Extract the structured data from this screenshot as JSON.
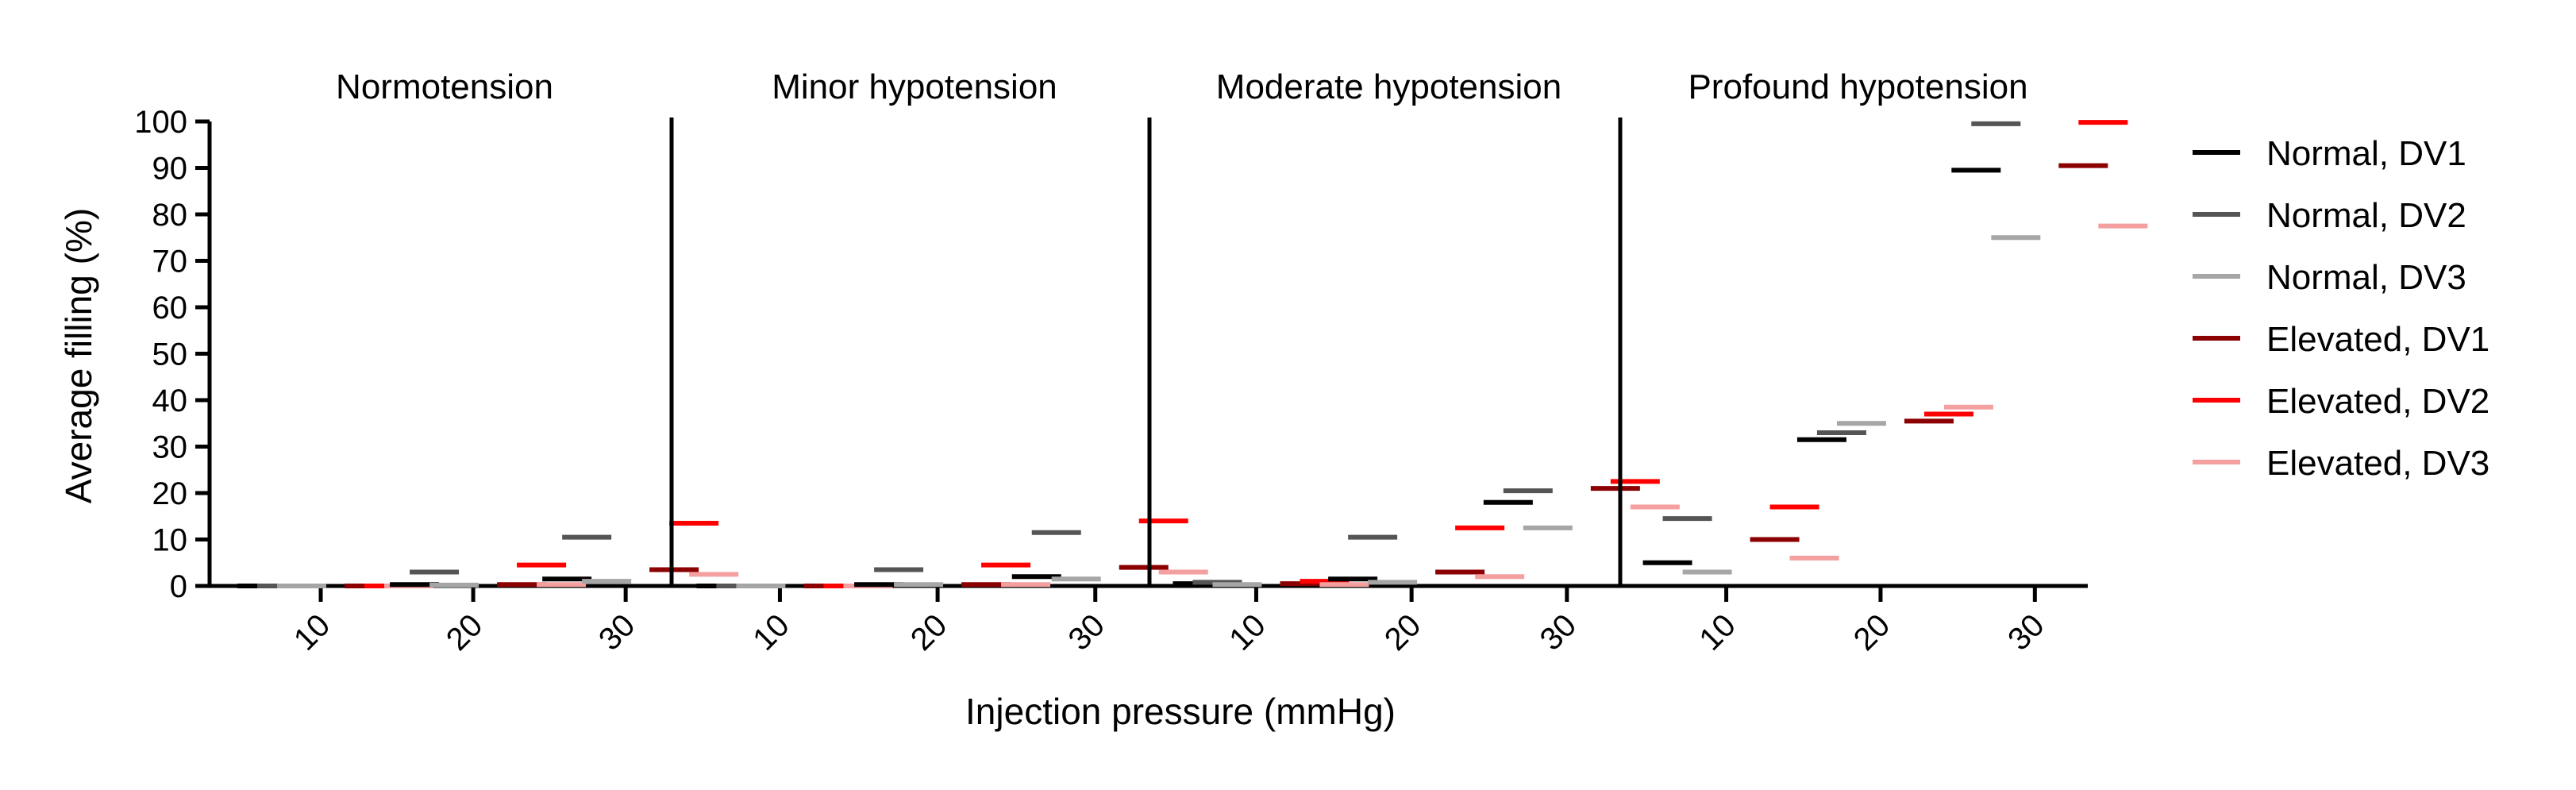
{
  "chart_data": {
    "type": "scatter",
    "ylabel": "Average filling (%)",
    "xlabel": "Injection pressure (mmHg)",
    "ylim": [
      0,
      100
    ],
    "yticks": [
      0,
      10,
      20,
      30,
      40,
      50,
      60,
      70,
      80,
      90,
      100
    ],
    "x": [
      "10",
      "20",
      "30"
    ],
    "legend_position": "right",
    "series": [
      {
        "name": "Normal, DV1",
        "color": "#000000"
      },
      {
        "name": "Normal, DV2",
        "color": "#555555"
      },
      {
        "name": "Normal, DV3",
        "color": "#a6a6a6"
      },
      {
        "name": "Elevated, DV1",
        "color": "#8b0000"
      },
      {
        "name": "Elevated, DV2",
        "color": "#ff0000"
      },
      {
        "name": "Elevated, DV3",
        "color": "#f4a0a0"
      }
    ],
    "panels": [
      {
        "title": "Normotension",
        "values": [
          [
            0,
            0,
            0,
            0,
            0,
            0
          ],
          [
            0.3,
            3,
            0.2,
            0.3,
            4.5,
            0.3
          ],
          [
            1.5,
            10.5,
            1,
            3.5,
            13.5,
            2.5
          ]
        ]
      },
      {
        "title": "Minor hypotension",
        "values": [
          [
            0,
            0,
            0,
            0,
            0,
            0
          ],
          [
            0.3,
            3.5,
            0.3,
            0.3,
            4.5,
            0.3
          ],
          [
            2,
            11.5,
            1.5,
            4,
            14,
            3
          ]
        ]
      },
      {
        "title": "Moderate hypotension",
        "values": [
          [
            0.5,
            0.8,
            0.3,
            0.5,
            1,
            0.3
          ],
          [
            1.5,
            10.5,
            0.8,
            3,
            12.5,
            2
          ],
          [
            18,
            20.5,
            12.5,
            21,
            22.5,
            17
          ]
        ]
      },
      {
        "title": "Profound hypotension",
        "values": [
          [
            5,
            14.5,
            3,
            10,
            17,
            6
          ],
          [
            31.5,
            33,
            35,
            35.5,
            37,
            38.5
          ],
          [
            89.5,
            99.5,
            75,
            90.5,
            99.8,
            77.5
          ]
        ]
      }
    ]
  }
}
